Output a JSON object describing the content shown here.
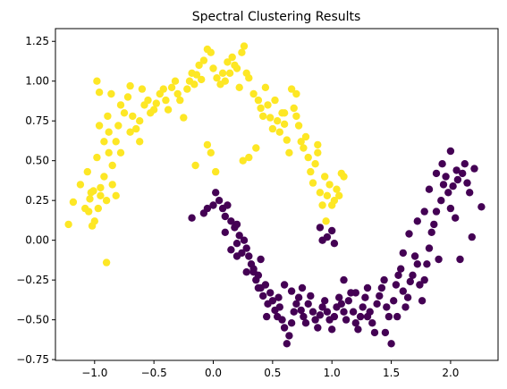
{
  "chart_data": {
    "type": "scatter",
    "title": "Spectral Clustering Results",
    "xlabel": "",
    "ylabel": "",
    "xlim": [
      -1.33,
      2.4
    ],
    "ylim": [
      -0.755,
      1.33
    ],
    "xticks": [
      -1.0,
      -0.5,
      0.0,
      0.5,
      1.0,
      1.5,
      2.0
    ],
    "xtick_labels": [
      "−1.0",
      "−0.5",
      "0.0",
      "0.5",
      "1.0",
      "1.5",
      "2.0"
    ],
    "yticks": [
      -0.75,
      -0.5,
      -0.25,
      0.0,
      0.25,
      0.5,
      0.75,
      1.0,
      1.25
    ],
    "ytick_labels": [
      "−0.75",
      "−0.50",
      "−0.25",
      "0.00",
      "0.25",
      "0.50",
      "0.75",
      "1.00",
      "1.25"
    ],
    "grid": false,
    "legend": "none",
    "series": [
      {
        "color": "#fde725",
        "points": [
          [
            -1.22,
            0.1
          ],
          [
            -1.18,
            0.24
          ],
          [
            -1.12,
            0.35
          ],
          [
            -1.06,
            0.43
          ],
          [
            -1.03,
            0.3
          ],
          [
            -1.05,
            0.18
          ],
          [
            -1.02,
            0.09
          ],
          [
            -0.97,
            0.2
          ],
          [
            -0.95,
            0.33
          ],
          [
            -0.92,
            0.4
          ],
          [
            -0.98,
            0.52
          ],
          [
            -0.92,
            0.62
          ],
          [
            -0.88,
            0.68
          ],
          [
            -0.96,
            0.72
          ],
          [
            -0.89,
            0.78
          ],
          [
            -0.86,
            0.92
          ],
          [
            -0.96,
            0.93
          ],
          [
            -0.98,
            1.0
          ],
          [
            -1.01,
            0.31
          ],
          [
            -1.04,
            0.26
          ],
          [
            -1.08,
            0.2
          ],
          [
            -1.0,
            0.12
          ],
          [
            -0.95,
            0.28
          ],
          [
            -0.9,
            0.25
          ],
          [
            -0.88,
            0.55
          ],
          [
            -0.85,
            0.47
          ],
          [
            -0.82,
            0.62
          ],
          [
            -0.8,
            0.72
          ],
          [
            -0.78,
            0.85
          ],
          [
            -0.75,
            0.8
          ],
          [
            -0.72,
            0.9
          ],
          [
            -0.7,
            0.97
          ],
          [
            -0.68,
            0.78
          ],
          [
            -0.65,
            0.7
          ],
          [
            -0.62,
            0.62
          ],
          [
            -0.6,
            0.95
          ],
          [
            -0.58,
            0.85
          ],
          [
            -0.55,
            0.88
          ],
          [
            -0.53,
            0.8
          ],
          [
            -0.5,
            0.82
          ],
          [
            -0.48,
            0.86
          ],
          [
            -0.45,
            0.92
          ],
          [
            -0.42,
            0.95
          ],
          [
            -0.4,
            0.88
          ],
          [
            -0.38,
            0.82
          ],
          [
            -0.35,
            0.96
          ],
          [
            -0.32,
            1.0
          ],
          [
            -0.3,
            0.92
          ],
          [
            -0.28,
            0.88
          ],
          [
            -0.25,
            0.77
          ],
          [
            -0.22,
            0.95
          ],
          [
            -0.2,
            1.0
          ],
          [
            -0.18,
            1.05
          ],
          [
            -0.16,
            0.98
          ],
          [
            -0.14,
            1.04
          ],
          [
            -0.12,
            1.1
          ],
          [
            -0.1,
            1.01
          ],
          [
            -0.08,
            1.13
          ],
          [
            -0.05,
            1.2
          ],
          [
            -0.02,
            1.18
          ],
          [
            0.0,
            1.08
          ],
          [
            0.03,
            1.02
          ],
          [
            0.06,
            0.98
          ],
          [
            0.08,
            1.05
          ],
          [
            0.1,
            1.0
          ],
          [
            0.12,
            1.12
          ],
          [
            0.14,
            1.05
          ],
          [
            0.16,
            1.15
          ],
          [
            0.18,
            1.1
          ],
          [
            0.2,
            1.08
          ],
          [
            0.22,
            0.96
          ],
          [
            0.24,
            1.18
          ],
          [
            0.26,
            1.22
          ],
          [
            0.28,
            1.05
          ],
          [
            0.3,
            1.02
          ],
          [
            0.34,
            0.92
          ],
          [
            0.38,
            0.88
          ],
          [
            0.4,
            0.83
          ],
          [
            0.42,
            0.78
          ],
          [
            0.44,
            0.96
          ],
          [
            0.46,
            0.85
          ],
          [
            0.48,
            0.77
          ],
          [
            0.5,
            0.7
          ],
          [
            0.52,
            0.88
          ],
          [
            0.54,
            0.75
          ],
          [
            0.56,
            0.68
          ],
          [
            0.58,
            0.8
          ],
          [
            0.6,
            0.73
          ],
          [
            0.62,
            0.63
          ],
          [
            0.64,
            0.55
          ],
          [
            0.66,
            0.95
          ],
          [
            0.68,
            0.83
          ],
          [
            0.7,
            0.78
          ],
          [
            0.72,
            0.72
          ],
          [
            0.74,
            0.62
          ],
          [
            0.76,
            0.58
          ],
          [
            0.78,
            0.65
          ],
          [
            0.8,
            0.52
          ],
          [
            0.82,
            0.43
          ],
          [
            0.84,
            0.36
          ],
          [
            0.86,
            0.48
          ],
          [
            0.88,
            0.6
          ],
          [
            0.9,
            0.3
          ],
          [
            0.92,
            0.22
          ],
          [
            0.94,
            0.4
          ],
          [
            0.96,
            0.28
          ],
          [
            0.98,
            0.35
          ],
          [
            1.0,
            0.22
          ],
          [
            1.02,
            0.25
          ],
          [
            1.04,
            0.32
          ],
          [
            1.06,
            0.28
          ],
          [
            1.08,
            0.42
          ],
          [
            1.1,
            0.4
          ],
          [
            -0.7,
            0.68
          ],
          [
            -0.62,
            0.75
          ],
          [
            -0.02,
            0.55
          ],
          [
            0.02,
            0.43
          ],
          [
            -0.15,
            0.47
          ],
          [
            -0.05,
            0.6
          ],
          [
            0.25,
            0.5
          ],
          [
            0.3,
            0.52
          ],
          [
            0.36,
            0.58
          ],
          [
            0.88,
            0.55
          ],
          [
            0.95,
            0.12
          ],
          [
            -0.9,
            -0.14
          ],
          [
            -0.85,
            0.35
          ],
          [
            -0.82,
            0.28
          ],
          [
            -0.78,
            0.55
          ],
          [
            0.7,
            0.92
          ],
          [
            0.6,
            0.8
          ]
        ]
      },
      {
        "color": "#440154",
        "points": [
          [
            -0.18,
            0.14
          ],
          [
            -0.08,
            0.17
          ],
          [
            -0.05,
            0.2
          ],
          [
            0.0,
            0.22
          ],
          [
            0.02,
            0.3
          ],
          [
            0.05,
            0.25
          ],
          [
            0.08,
            0.2
          ],
          [
            0.1,
            0.15
          ],
          [
            0.12,
            0.22
          ],
          [
            0.15,
            0.12
          ],
          [
            0.18,
            0.08
          ],
          [
            0.2,
            0.1
          ],
          [
            0.22,
            0.03
          ],
          [
            0.24,
            -0.08
          ],
          [
            0.26,
            0.0
          ],
          [
            0.28,
            -0.05
          ],
          [
            0.3,
            -0.1
          ],
          [
            0.32,
            -0.15
          ],
          [
            0.34,
            -0.2
          ],
          [
            0.36,
            -0.25
          ],
          [
            0.38,
            -0.22
          ],
          [
            0.4,
            -0.3
          ],
          [
            0.42,
            -0.35
          ],
          [
            0.44,
            -0.28
          ],
          [
            0.46,
            -0.4
          ],
          [
            0.48,
            -0.33
          ],
          [
            0.5,
            -0.38
          ],
          [
            0.52,
            -0.44
          ],
          [
            0.54,
            -0.48
          ],
          [
            0.56,
            -0.42
          ],
          [
            0.58,
            -0.5
          ],
          [
            0.6,
            -0.55
          ],
          [
            0.62,
            -0.65
          ],
          [
            0.64,
            -0.6
          ],
          [
            0.66,
            -0.52
          ],
          [
            0.68,
            -0.45
          ],
          [
            0.7,
            -0.4
          ],
          [
            0.72,
            -0.36
          ],
          [
            0.74,
            -0.44
          ],
          [
            0.76,
            -0.48
          ],
          [
            0.78,
            -0.52
          ],
          [
            0.8,
            -0.4
          ],
          [
            0.82,
            -0.35
          ],
          [
            0.84,
            -0.45
          ],
          [
            0.86,
            -0.5
          ],
          [
            0.88,
            -0.55
          ],
          [
            0.9,
            -0.47
          ],
          [
            0.92,
            -0.42
          ],
          [
            0.94,
            -0.38
          ],
          [
            0.96,
            -0.45
          ],
          [
            0.98,
            -0.5
          ],
          [
            1.0,
            -0.56
          ],
          [
            1.02,
            -0.48
          ],
          [
            1.04,
            -0.42
          ],
          [
            1.06,
            -0.36
          ],
          [
            1.08,
            -0.4
          ],
          [
            1.1,
            -0.45
          ],
          [
            1.12,
            -0.5
          ],
          [
            1.14,
            -0.38
          ],
          [
            1.16,
            -0.33
          ],
          [
            1.18,
            -0.45
          ],
          [
            1.2,
            -0.52
          ],
          [
            1.22,
            -0.56
          ],
          [
            1.24,
            -0.48
          ],
          [
            1.26,
            -0.42
          ],
          [
            1.28,
            -0.36
          ],
          [
            1.3,
            -0.3
          ],
          [
            1.32,
            -0.45
          ],
          [
            1.34,
            -0.52
          ],
          [
            1.36,
            -0.58
          ],
          [
            1.38,
            -0.4
          ],
          [
            1.4,
            -0.35
          ],
          [
            1.42,
            -0.3
          ],
          [
            1.44,
            -0.25
          ],
          [
            1.46,
            -0.42
          ],
          [
            1.48,
            -0.48
          ],
          [
            1.5,
            -0.65
          ],
          [
            1.52,
            -0.38
          ],
          [
            1.54,
            -0.28
          ],
          [
            1.56,
            -0.22
          ],
          [
            1.58,
            -0.18
          ],
          [
            1.6,
            -0.32
          ],
          [
            1.62,
            -0.42
          ],
          [
            1.64,
            -0.36
          ],
          [
            1.66,
            -0.26
          ],
          [
            1.68,
            -0.22
          ],
          [
            1.7,
            -0.1
          ],
          [
            1.72,
            -0.15
          ],
          [
            1.74,
            -0.28
          ],
          [
            1.76,
            -0.38
          ],
          [
            1.78,
            -0.25
          ],
          [
            1.8,
            -0.15
          ],
          [
            1.82,
            -0.05
          ],
          [
            1.84,
            0.05
          ],
          [
            1.86,
            0.1
          ],
          [
            1.88,
            0.18
          ],
          [
            1.9,
            -0.12
          ],
          [
            1.92,
            0.25
          ],
          [
            1.94,
            0.35
          ],
          [
            1.96,
            0.4
          ],
          [
            1.98,
            0.3
          ],
          [
            2.0,
            0.2
          ],
          [
            2.02,
            0.34
          ],
          [
            2.04,
            0.14
          ],
          [
            2.06,
            0.38
          ],
          [
            2.08,
            -0.12
          ],
          [
            2.1,
            0.42
          ],
          [
            2.12,
            0.48
          ],
          [
            2.14,
            0.36
          ],
          [
            2.16,
            0.3
          ],
          [
            2.18,
            0.02
          ],
          [
            2.2,
            0.45
          ],
          [
            2.26,
            0.21
          ],
          [
            1.93,
            0.48
          ],
          [
            2.0,
            0.56
          ],
          [
            2.05,
            0.44
          ],
          [
            1.88,
            0.42
          ],
          [
            1.82,
            0.32
          ],
          [
            1.78,
            0.18
          ],
          [
            1.72,
            0.12
          ],
          [
            1.65,
            0.04
          ],
          [
            1.6,
            -0.08
          ],
          [
            0.9,
            0.08
          ],
          [
            0.96,
            0.02
          ],
          [
            1.02,
            -0.02
          ],
          [
            1.0,
            0.06
          ],
          [
            0.92,
            0.0
          ],
          [
            0.2,
            -0.02
          ],
          [
            0.34,
            -0.18
          ],
          [
            0.4,
            -0.12
          ],
          [
            0.6,
            -0.28
          ],
          [
            0.66,
            -0.32
          ],
          [
            0.75,
            -0.3
          ],
          [
            0.45,
            -0.48
          ],
          [
            0.55,
            -0.36
          ],
          [
            0.38,
            -0.3
          ],
          [
            0.28,
            -0.2
          ],
          [
            0.2,
            -0.1
          ],
          [
            0.15,
            -0.06
          ],
          [
            0.1,
            0.05
          ],
          [
            1.1,
            -0.25
          ],
          [
            1.2,
            -0.33
          ],
          [
            1.3,
            -0.48
          ],
          [
            1.45,
            -0.58
          ],
          [
            1.55,
            -0.48
          ]
        ]
      }
    ]
  }
}
